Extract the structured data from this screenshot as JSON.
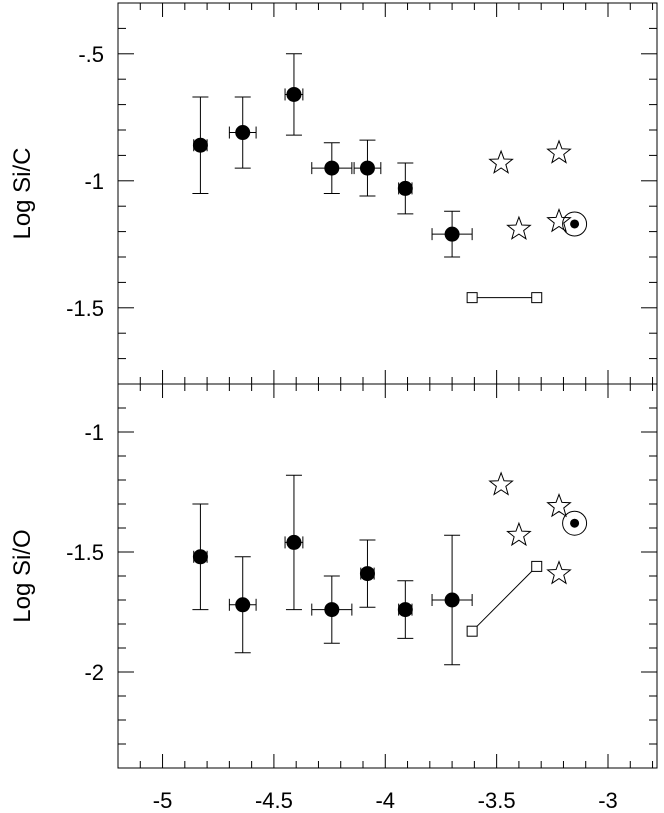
{
  "chart_data": [
    {
      "type": "scatter",
      "title": "",
      "xlabel": "",
      "ylabel": "Log Si/C",
      "xlim": [
        -5.2,
        -2.78
      ],
      "ylim": [
        -1.8,
        -0.3
      ],
      "x_ticks": [
        -5,
        -4.5,
        -4,
        -3.5,
        -3
      ],
      "x_tick_labels": [
        "-5",
        "-4.5",
        "-4",
        "-3.5",
        "-3"
      ],
      "y_ticks": [
        -0.5,
        -1,
        -1.5
      ],
      "y_tick_labels": [
        ".5",
        "-1",
        "-1.5"
      ],
      "y_tick_prefix_first": "-",
      "points": [
        {
          "x": -4.83,
          "y": -0.86,
          "xerr": 0.03,
          "yerr": [
            0.19,
            0.19
          ]
        },
        {
          "x": -4.64,
          "y": -0.81,
          "xerr": 0.06,
          "yerr": [
            0.14,
            0.14
          ]
        },
        {
          "x": -4.41,
          "y": -0.66,
          "xerr": 0.04,
          "yerr": [
            0.16,
            0.16
          ]
        },
        {
          "x": -4.24,
          "y": -0.95,
          "xerr": 0.09,
          "yerr": [
            0.1,
            0.1
          ]
        },
        {
          "x": -4.08,
          "y": -0.95,
          "xerr": 0.06,
          "yerr": [
            0.11,
            0.11
          ]
        },
        {
          "x": -3.91,
          "y": -1.03,
          "xerr": 0.03,
          "yerr": [
            0.1,
            0.1
          ]
        },
        {
          "x": -3.7,
          "y": -1.21,
          "xerr": 0.09,
          "yerr": [
            0.09,
            0.09
          ]
        }
      ],
      "stars": [
        {
          "x": -3.48,
          "y": -0.93
        },
        {
          "x": -3.4,
          "y": -1.19
        },
        {
          "x": -3.22,
          "y": -0.89
        },
        {
          "x": -3.22,
          "y": -1.16
        }
      ],
      "sun": {
        "x": -3.15,
        "y": -1.17
      },
      "range_segment": [
        {
          "x": -3.61,
          "y": -1.46
        },
        {
          "x": -3.32,
          "y": -1.46
        }
      ]
    },
    {
      "type": "scatter",
      "title": "",
      "xlabel": "",
      "ylabel": "Log Si/O",
      "xlim": [
        -5.2,
        -2.78
      ],
      "ylim": [
        -2.4,
        -0.8
      ],
      "x_ticks": [
        -5,
        -4.5,
        -4,
        -3.5,
        -3
      ],
      "x_tick_labels": [
        "-5",
        "-4.5",
        "-4",
        "-3.5",
        "-3"
      ],
      "y_ticks": [
        -1,
        -1.5,
        -2
      ],
      "y_tick_labels": [
        "-1",
        "-1.5",
        "-2"
      ],
      "points": [
        {
          "x": -4.83,
          "y": -1.52,
          "xerr": 0.03,
          "yerr": [
            0.22,
            0.22
          ]
        },
        {
          "x": -4.64,
          "y": -1.72,
          "xerr": 0.06,
          "yerr": [
            0.2,
            0.2
          ]
        },
        {
          "x": -4.41,
          "y": -1.46,
          "xerr": 0.04,
          "yerr": [
            0.28,
            0.28
          ]
        },
        {
          "x": -4.24,
          "y": -1.74,
          "xerr": 0.09,
          "yerr": [
            0.14,
            0.14
          ]
        },
        {
          "x": -4.08,
          "y": -1.59,
          "xerr": 0.03,
          "yerr": [
            0.14,
            0.14
          ]
        },
        {
          "x": -3.91,
          "y": -1.74,
          "xerr": 0.03,
          "yerr": [
            0.12,
            0.12
          ]
        },
        {
          "x": -3.7,
          "y": -1.7,
          "xerr": 0.09,
          "yerr": [
            0.27,
            0.27
          ]
        }
      ],
      "stars": [
        {
          "x": -3.48,
          "y": -1.22
        },
        {
          "x": -3.4,
          "y": -1.43
        },
        {
          "x": -3.22,
          "y": -1.31
        },
        {
          "x": -3.22,
          "y": -1.59
        }
      ],
      "sun": {
        "x": -3.15,
        "y": -1.38
      },
      "range_segment": [
        {
          "x": -3.61,
          "y": -1.83
        },
        {
          "x": -3.32,
          "y": -1.56
        }
      ]
    }
  ]
}
